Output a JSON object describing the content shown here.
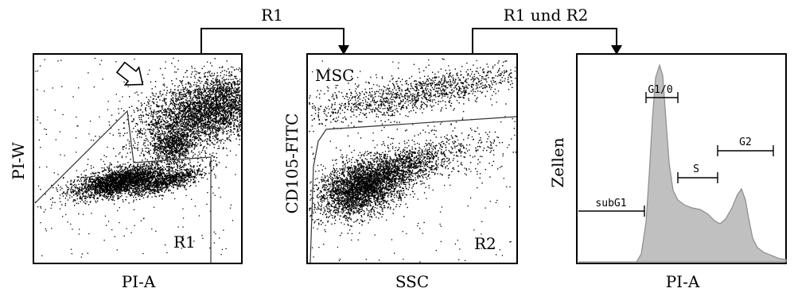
{
  "panels": {
    "left": {
      "y_label": "PI-W",
      "x_label": "PI-A",
      "gate_label": "R1"
    },
    "middle": {
      "y_label": "CD105-FITC",
      "x_label": "SSC",
      "population_label": "MSC",
      "gate_label": "R2"
    },
    "right": {
      "y_label": "Zellen",
      "x_label": "PI-A",
      "phase_labels": {
        "g1": "G1/0",
        "s": "S",
        "g2": "G2",
        "subg1": "subG1"
      }
    }
  },
  "arrows": {
    "first": "R1",
    "second": "R1 und R2"
  },
  "colors": {
    "histogram_fill": "#c0c0c0",
    "histogram_stroke": "#8c8c8c",
    "dots": "#000000"
  }
}
